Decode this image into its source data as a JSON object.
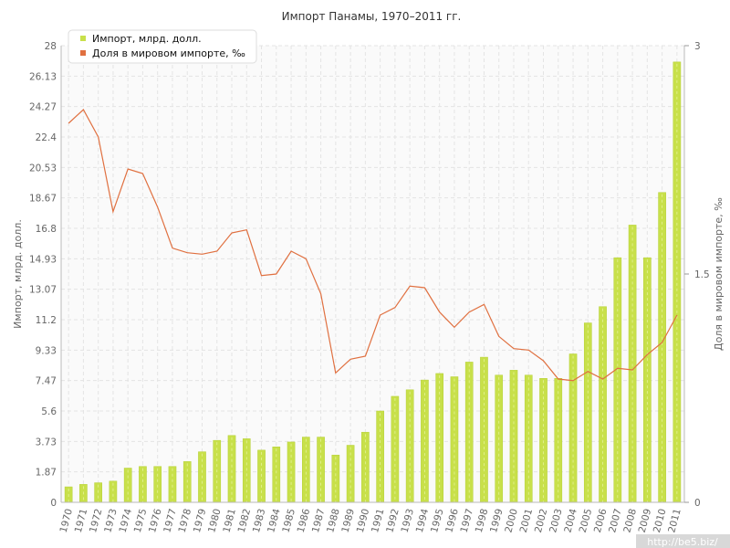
{
  "chart_data": {
    "type": "bar+line",
    "title": "Импорт Панамы, 1970–2011 гг.",
    "ylabel_left": "Импорт, млрд. долл.",
    "ylabel_right": "Доля в мировом импорте, ‰",
    "ylim_left": [
      0,
      28
    ],
    "ylim_right": [
      0,
      3
    ],
    "yticks_left": [
      "0",
      "1.87",
      "3.73",
      "5.6",
      "7.47",
      "9.33",
      "11.2",
      "13.07",
      "14.93",
      "16.8",
      "18.67",
      "20.53",
      "22.4",
      "24.27",
      "26.13",
      "28"
    ],
    "yticks_right": [
      "0",
      "1.5",
      "3"
    ],
    "categories": [
      "1970",
      "1971",
      "1972",
      "1973",
      "1974",
      "1975",
      "1976",
      "1977",
      "1978",
      "1979",
      "1980",
      "1981",
      "1982",
      "1983",
      "1984",
      "1985",
      "1986",
      "1987",
      "1988",
      "1989",
      "1990",
      "1991",
      "1992",
      "1993",
      "1994",
      "1995",
      "1996",
      "1997",
      "1998",
      "1999",
      "2000",
      "2001",
      "2002",
      "2003",
      "2004",
      "2005",
      "2006",
      "2007",
      "2008",
      "2009",
      "2010",
      "2011"
    ],
    "series": [
      {
        "name": "Импорт, млрд. долл.",
        "type": "bar",
        "axis": "left",
        "color": "#c8e04a",
        "values": [
          0.95,
          1.1,
          1.2,
          1.3,
          2.1,
          2.2,
          2.2,
          2.2,
          2.5,
          3.1,
          3.8,
          4.1,
          3.9,
          3.2,
          3.4,
          3.7,
          4.0,
          4.0,
          2.9,
          3.5,
          4.3,
          5.6,
          6.5,
          6.9,
          7.5,
          7.9,
          7.7,
          8.6,
          8.9,
          7.8,
          8.1,
          7.8,
          7.6,
          7.6,
          9.1,
          11.0,
          12.0,
          15.0,
          17.0,
          15.0,
          19.0,
          27.0
        ]
      },
      {
        "name": "Доля в мировом импорте, ‰",
        "type": "line",
        "axis": "right",
        "color": "#e07040",
        "values": [
          2.49,
          2.58,
          2.4,
          1.91,
          2.19,
          2.16,
          1.94,
          1.67,
          1.64,
          1.63,
          1.65,
          1.77,
          1.79,
          1.49,
          1.5,
          1.65,
          1.6,
          1.37,
          0.85,
          0.94,
          0.96,
          1.23,
          1.28,
          1.42,
          1.41,
          1.25,
          1.15,
          1.25,
          1.3,
          1.09,
          1.01,
          1.0,
          0.93,
          0.81,
          0.8,
          0.86,
          0.81,
          0.88,
          0.87,
          0.97,
          1.05,
          1.23
        ]
      }
    ],
    "legend": {
      "position": "top-left"
    },
    "grid": true
  },
  "watermark": "http://be5.biz/"
}
